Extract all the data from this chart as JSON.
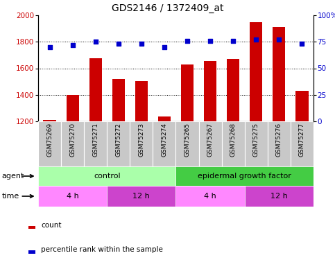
{
  "title": "GDS2146 / 1372409_at",
  "samples": [
    "GSM75269",
    "GSM75270",
    "GSM75271",
    "GSM75272",
    "GSM75273",
    "GSM75274",
    "GSM75265",
    "GSM75267",
    "GSM75268",
    "GSM75275",
    "GSM75276",
    "GSM75277"
  ],
  "counts": [
    1210,
    1400,
    1675,
    1520,
    1505,
    1235,
    1630,
    1655,
    1670,
    1950,
    1910,
    1430
  ],
  "percentiles": [
    70,
    72,
    75,
    73,
    73,
    70,
    76,
    76,
    76,
    77,
    77,
    73
  ],
  "ylim_left": [
    1200,
    2000
  ],
  "ylim_right": [
    0,
    100
  ],
  "yticks_left": [
    1200,
    1400,
    1600,
    1800,
    2000
  ],
  "yticks_right": [
    0,
    25,
    50,
    75,
    100
  ],
  "ytick_labels_right": [
    "0",
    "25",
    "50",
    "75",
    "100%"
  ],
  "bar_color": "#cc0000",
  "dot_color": "#0000cc",
  "bg_color": "#ffffff",
  "plot_bg": "#ffffff",
  "sample_bg": "#c8c8c8",
  "control_color": "#aaffaa",
  "egf_color": "#44cc44",
  "time_4h_color": "#ff88ff",
  "time_12h_color": "#cc44cc",
  "agent_label": "agent",
  "time_label": "time",
  "control_label": "control",
  "egf_label": "epidermal growth factor",
  "time_blocks": [
    {
      "label": "4 h",
      "start": 0,
      "end": 3
    },
    {
      "label": "12 h",
      "start": 3,
      "end": 6
    },
    {
      "label": "4 h",
      "start": 6,
      "end": 9
    },
    {
      "label": "12 h",
      "start": 9,
      "end": 12
    }
  ],
  "legend_count_color": "#cc0000",
  "legend_dot_color": "#0000cc",
  "title_fontsize": 10,
  "tick_fontsize": 7.5,
  "sample_fontsize": 6.5,
  "row_fontsize": 8,
  "legend_fontsize": 7.5
}
